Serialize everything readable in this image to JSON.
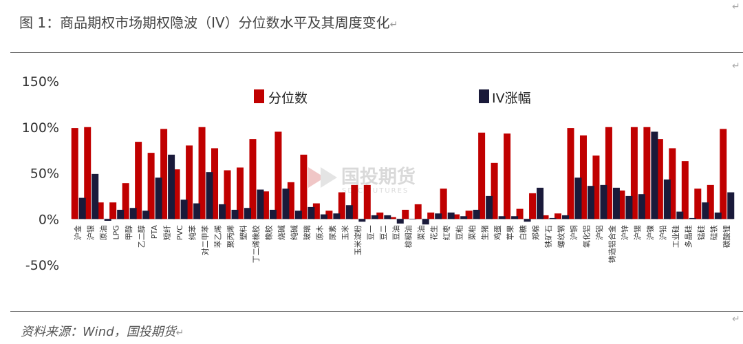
{
  "title": "图 1：商品期权市场期权隐波（IV）分位数水平及其周度变化",
  "source": "资料来源：Wind，国投期货",
  "return_mark": "↵",
  "watermark": {
    "main": "国投期货",
    "sub": "SDIC FUTURES"
  },
  "colors": {
    "quantile": "#c00000",
    "iv_change": "#1a1a3a",
    "axis_text": "#333333"
  },
  "chart_data": {
    "type": "bar",
    "title": "",
    "xlabel": "",
    "ylabel": "",
    "ylim": [
      -0.5,
      1.5
    ],
    "yticks": [
      1.5,
      1.0,
      0.5,
      0.0,
      -0.5
    ],
    "ytick_labels": [
      "150%",
      "100%",
      "50%",
      "0%",
      "-50%"
    ],
    "legend_position": "top-center",
    "grid": false,
    "categories": [
      "沪金",
      "沪银",
      "原油",
      "LPG",
      "甲醇",
      "乙二醇",
      "PTA",
      "短纤",
      "PVC",
      "纯苯",
      "对二甲苯",
      "苯乙烯",
      "聚丙烯",
      "塑料",
      "丁二烯橡胶",
      "橡胶",
      "烧碱",
      "纯碱",
      "玻璃",
      "原木",
      "尿素",
      "玉米",
      "玉米淀粉",
      "豆一",
      "豆二",
      "豆油",
      "棕榈油",
      "菜油",
      "花生",
      "红枣",
      "豆粕",
      "菜粕",
      "生猪",
      "鸡蛋",
      "苹果",
      "白糖",
      "郑棉",
      "铁矿石",
      "螺纹钢",
      "沪铜",
      "氧化铝",
      "沪铝",
      "铸造铝合金",
      "沪锌",
      "沪锡",
      "沪镍",
      "沪铅",
      "工业硅",
      "多晶硅",
      "锰硅",
      "硅铁",
      "碳酸锂"
    ],
    "series": [
      {
        "name": "分位数",
        "values": [
          0.99,
          1.0,
          0.18,
          0.18,
          0.39,
          0.84,
          0.72,
          0.98,
          0.54,
          0.8,
          1.0,
          0.77,
          0.53,
          0.56,
          0.87,
          0.3,
          0.95,
          0.4,
          0.7,
          0.17,
          0.09,
          0.29,
          0.37,
          0.37,
          0.07,
          0.02,
          0.1,
          0.16,
          0.07,
          0.33,
          0.05,
          0.09,
          0.94,
          0.61,
          0.93,
          0.11,
          0.28,
          0.04,
          0.06,
          0.99,
          0.91,
          0.69,
          1.0,
          0.31,
          1.0,
          1.0,
          0.87,
          0.77,
          0.63,
          0.33,
          0.37,
          0.98
        ]
      },
      {
        "name": "IV涨幅",
        "values": [
          0.23,
          0.49,
          -0.02,
          0.1,
          0.12,
          0.09,
          0.45,
          0.7,
          0.21,
          0.17,
          0.51,
          0.16,
          0.1,
          0.12,
          0.32,
          0.1,
          0.33,
          0.09,
          0.13,
          0.05,
          0.06,
          0.15,
          -0.03,
          0.04,
          0.04,
          -0.05,
          0.0,
          -0.06,
          0.06,
          0.07,
          0.03,
          0.1,
          0.25,
          0.03,
          0.03,
          -0.03,
          0.34,
          0.01,
          0.04,
          0.45,
          0.36,
          0.37,
          0.34,
          0.25,
          0.27,
          0.95,
          0.43,
          0.08,
          0.01,
          0.18,
          0.07,
          0.29
        ]
      }
    ]
  }
}
